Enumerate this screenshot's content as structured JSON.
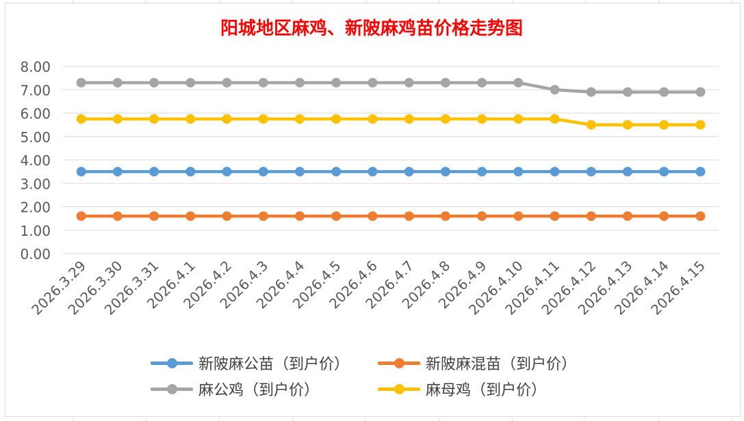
{
  "chart_data": {
    "type": "line",
    "title": "阳城地区麻鸡、新陂麻鸡苗价格走势图",
    "categories": [
      "2026.3.29",
      "2026.3.30",
      "2026.3.31",
      "2026.4.1",
      "2026.4.2",
      "2026.4.3",
      "2026.4.4",
      "2026.4.5",
      "2026.4.6",
      "2026.4.7",
      "2026.4.8",
      "2026.4.9",
      "2026.4.10",
      "2026.4.11",
      "2026.4.12",
      "2026.4.13",
      "2026.4.14",
      "2026.4.15"
    ],
    "yticks": [
      "0.00",
      "1.00",
      "2.00",
      "3.00",
      "4.00",
      "5.00",
      "6.00",
      "7.00",
      "8.00"
    ],
    "ylim": [
      0,
      8
    ],
    "xlabel": "",
    "ylabel": "",
    "legend_position": "bottom",
    "series": [
      {
        "name": "新陂麻公苗（到户价）",
        "color": "#5b9bd5",
        "values": [
          3.5,
          3.5,
          3.5,
          3.5,
          3.5,
          3.5,
          3.5,
          3.5,
          3.5,
          3.5,
          3.5,
          3.5,
          3.5,
          3.5,
          3.5,
          3.5,
          3.5,
          3.5
        ]
      },
      {
        "name": "新陂麻混苗（到户价）",
        "color": "#ed7d31",
        "values": [
          1.6,
          1.6,
          1.6,
          1.6,
          1.6,
          1.6,
          1.6,
          1.6,
          1.6,
          1.6,
          1.6,
          1.6,
          1.6,
          1.6,
          1.6,
          1.6,
          1.6,
          1.6
        ]
      },
      {
        "name": "麻公鸡（到户价）",
        "color": "#a5a5a5",
        "values": [
          7.3,
          7.3,
          7.3,
          7.3,
          7.3,
          7.3,
          7.3,
          7.3,
          7.3,
          7.3,
          7.3,
          7.3,
          7.3,
          7.0,
          6.9,
          6.9,
          6.9,
          6.9
        ]
      },
      {
        "name": "麻母鸡（到户价）",
        "color": "#ffc000",
        "values": [
          5.75,
          5.75,
          5.75,
          5.75,
          5.75,
          5.75,
          5.75,
          5.75,
          5.75,
          5.75,
          5.75,
          5.75,
          5.75,
          5.75,
          5.5,
          5.5,
          5.5,
          5.5
        ]
      }
    ]
  },
  "colors": {
    "title": "#ff0000",
    "axis_text": "#595959",
    "gridline": "#d9d9d9"
  }
}
